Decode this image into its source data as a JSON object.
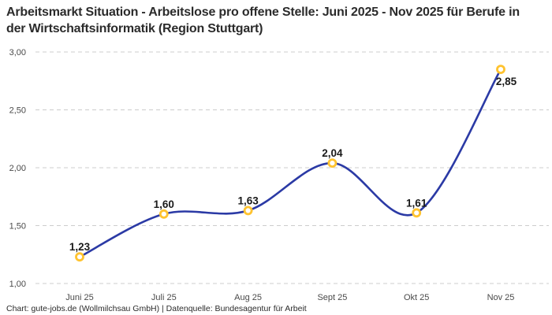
{
  "header": {
    "title": "Arbeitsmarkt Situation - Arbeitslose pro offene Stelle: Juni 2025 - Nov 2025 für Berufe in der Wirtschaftsinformatik (Region Stuttgart)"
  },
  "footer": {
    "credit": "Chart: gute-jobs.de (Wollmilchsau GmbH) | Datenquelle: Bundesagentur für Arbeit"
  },
  "chart_data": {
    "type": "line",
    "title": "Arbeitsmarkt Situation - Arbeitslose pro offene Stelle: Juni 2025 - Nov 2025 für Berufe in der Wirtschaftsinformatik (Region Stuttgart)",
    "categories": [
      "Juni 25",
      "Juli 25",
      "Aug 25",
      "Sept 25",
      "Okt 25",
      "Nov 25"
    ],
    "values": [
      1.23,
      1.6,
      1.63,
      2.04,
      1.61,
      2.85
    ],
    "value_labels": [
      "1,23",
      "1,60",
      "1,63",
      "2,04",
      "1,61",
      "2,85"
    ],
    "label_side": [
      "above",
      "above",
      "above",
      "above",
      "above",
      "below"
    ],
    "xlabel": "",
    "ylabel": "",
    "ylim": [
      1.0,
      3.0
    ],
    "y_ticks": [
      {
        "value": 3.0,
        "label": "3,00"
      },
      {
        "value": 2.5,
        "label": "2,50"
      },
      {
        "value": 2.0,
        "label": "2,00"
      },
      {
        "value": 1.5,
        "label": "1,50"
      },
      {
        "value": 1.0,
        "label": "1,00"
      }
    ],
    "grid": "horizontal-dashed",
    "legend": "none",
    "curve": "smooth",
    "colors": {
      "line": "#2B3AA5",
      "marker_ring": "#FFC32F",
      "marker_fill": "#FFFFFF",
      "grid": "#CCCCCC",
      "tick_text": "#4A4A4A",
      "value_label_text": "#1A1A1A"
    }
  }
}
